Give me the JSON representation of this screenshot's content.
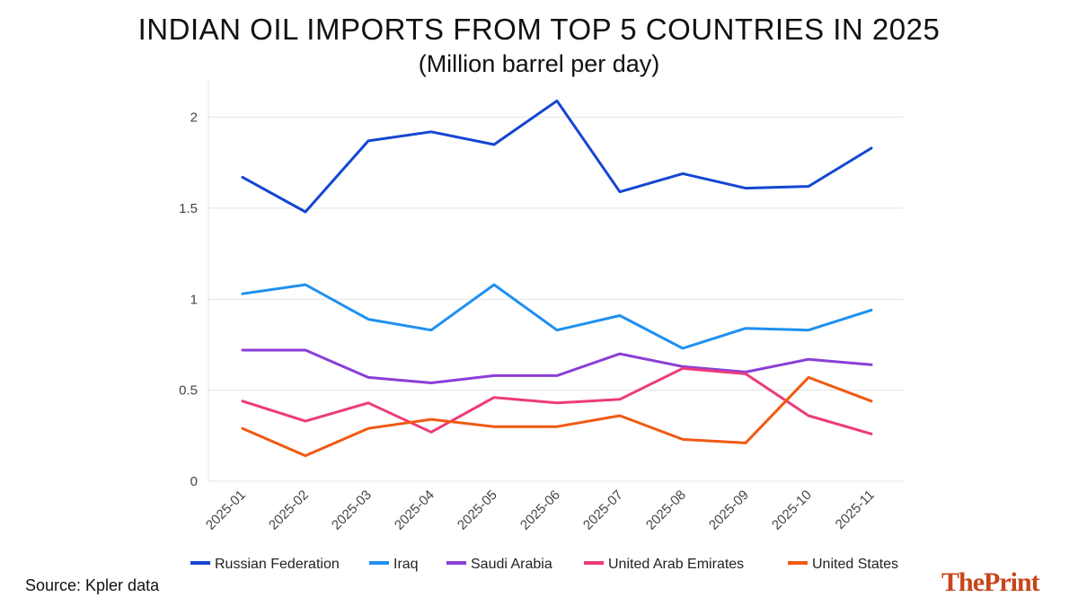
{
  "colors": {
    "russia": "#1446d4",
    "iraq": "#1e90f0",
    "saudi": "#8a3fd6",
    "uae": "#ec3b7a",
    "us": "#f05a12",
    "grid": "#e3e3e3",
    "logo": "#c8451b"
  },
  "footer": {
    "source": "Source: Kpler data",
    "logo": "ThePrint"
  },
  "chart_data": {
    "type": "line",
    "title": "INDIAN OIL IMPORTS FROM TOP 5 COUNTRIES IN 2025",
    "subtitle": "(Million barrel per day)",
    "xlabel": "",
    "ylabel": "",
    "x": [
      "2025-01",
      "2025-02",
      "2025-03",
      "2025-04",
      "2025-05",
      "2025-06",
      "2025-07",
      "2025-08",
      "2025-09",
      "2025-10",
      "2025-11"
    ],
    "ylim": [
      0,
      2.2
    ],
    "yticks": [
      0,
      0.5,
      1,
      1.5,
      2
    ],
    "ytick_labels": [
      "0",
      "0.5",
      "1",
      "1.5",
      "2"
    ],
    "grid": true,
    "legend": "bottom",
    "series": [
      {
        "name": "Russian Federation",
        "color": "#1446d4",
        "values": [
          1.67,
          1.48,
          1.87,
          1.92,
          1.85,
          2.09,
          1.59,
          1.69,
          1.61,
          1.62,
          1.83
        ]
      },
      {
        "name": "Iraq",
        "color": "#1e90f0",
        "values": [
          1.03,
          1.08,
          0.89,
          0.83,
          1.08,
          0.83,
          0.91,
          0.73,
          0.84,
          0.83,
          0.94
        ]
      },
      {
        "name": "Saudi Arabia",
        "color": "#8a3fd6",
        "values": [
          0.72,
          0.72,
          0.57,
          0.54,
          0.58,
          0.58,
          0.7,
          0.63,
          0.6,
          0.67,
          0.64
        ]
      },
      {
        "name": "United Arab Emirates",
        "color": "#ec3b7a",
        "values": [
          0.44,
          0.33,
          0.43,
          0.27,
          0.46,
          0.43,
          0.45,
          0.62,
          0.59,
          0.36,
          0.26
        ]
      },
      {
        "name": "United States",
        "color": "#f05a12",
        "values": [
          0.29,
          0.14,
          0.29,
          0.34,
          0.3,
          0.3,
          0.36,
          0.23,
          0.21,
          0.57,
          0.44
        ]
      }
    ]
  }
}
